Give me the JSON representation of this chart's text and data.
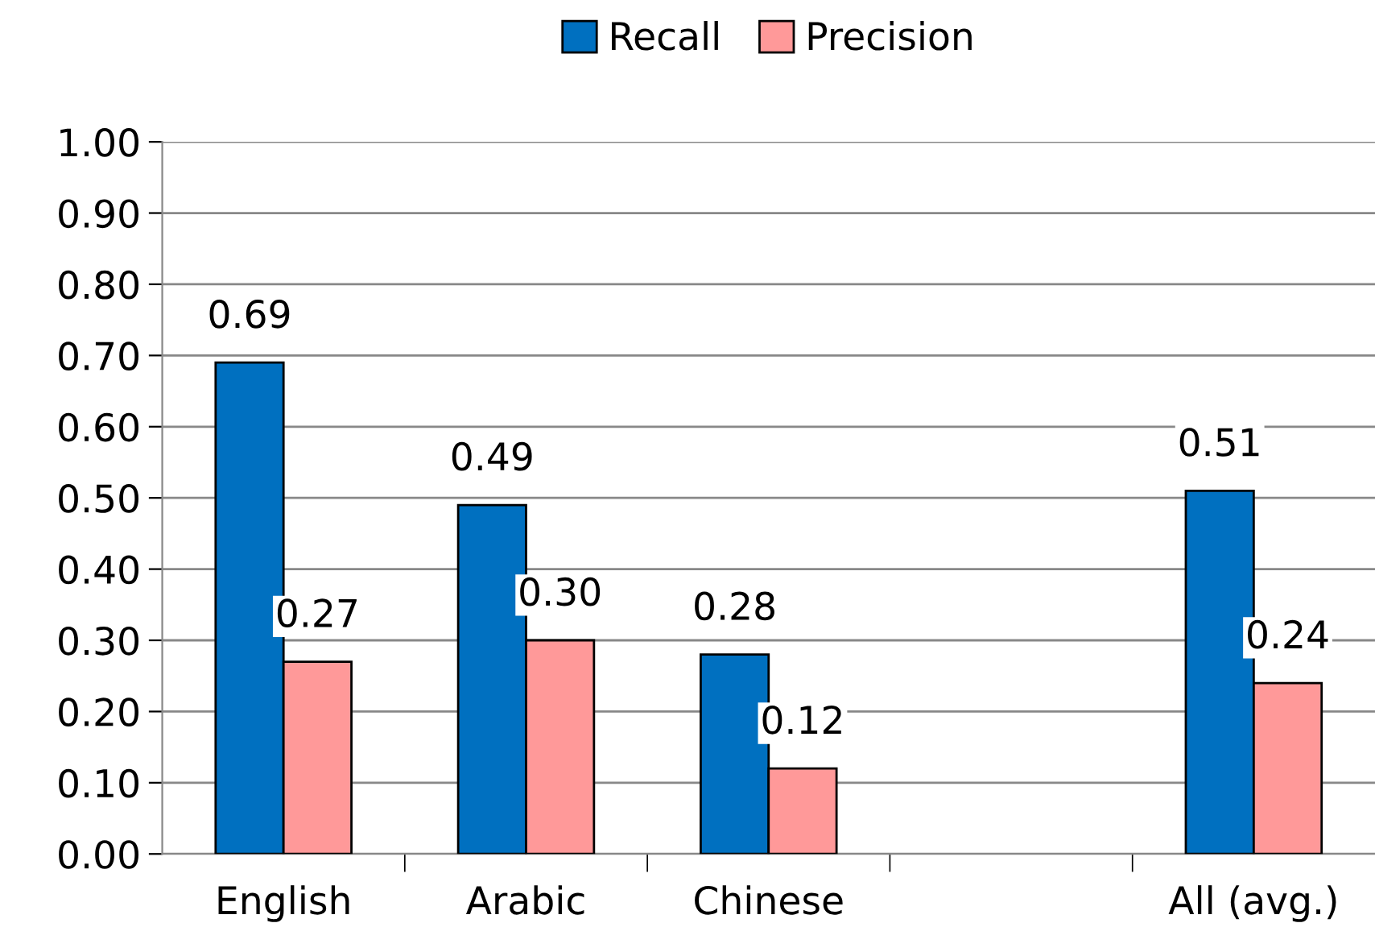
{
  "chart_data": {
    "type": "bar",
    "categories": [
      "English",
      "Arabic",
      "Chinese",
      null,
      "All (avg.)"
    ],
    "series": [
      {
        "name": "Recall",
        "color": "#0070c0",
        "values": [
          0.69,
          0.49,
          0.28,
          null,
          0.51
        ],
        "value_labels": [
          "0.69",
          "0.49",
          "0.28",
          null,
          "0.51"
        ]
      },
      {
        "name": "Precision",
        "color": "#ff9999",
        "values": [
          0.27,
          0.3,
          0.12,
          null,
          0.24
        ],
        "value_labels": [
          "0.27",
          "0.30",
          "0.12",
          null,
          "0.24"
        ]
      }
    ],
    "ylim": [
      0,
      1
    ],
    "yticks": [
      {
        "value": 0,
        "label": "0.00"
      },
      {
        "value": 0.1,
        "label": "0.10"
      },
      {
        "value": 0.2,
        "label": "0.20"
      },
      {
        "value": 0.3,
        "label": "0.30"
      },
      {
        "value": 0.4,
        "label": "0.40"
      },
      {
        "value": 0.5,
        "label": "0.50"
      },
      {
        "value": 0.6,
        "label": "0.60"
      },
      {
        "value": 0.7,
        "label": "0.70"
      },
      {
        "value": 0.8,
        "label": "0.80"
      },
      {
        "value": 0.9,
        "label": "0.90"
      },
      {
        "value": 1,
        "label": "1.00"
      }
    ],
    "grid": "y",
    "legend": "top"
  }
}
